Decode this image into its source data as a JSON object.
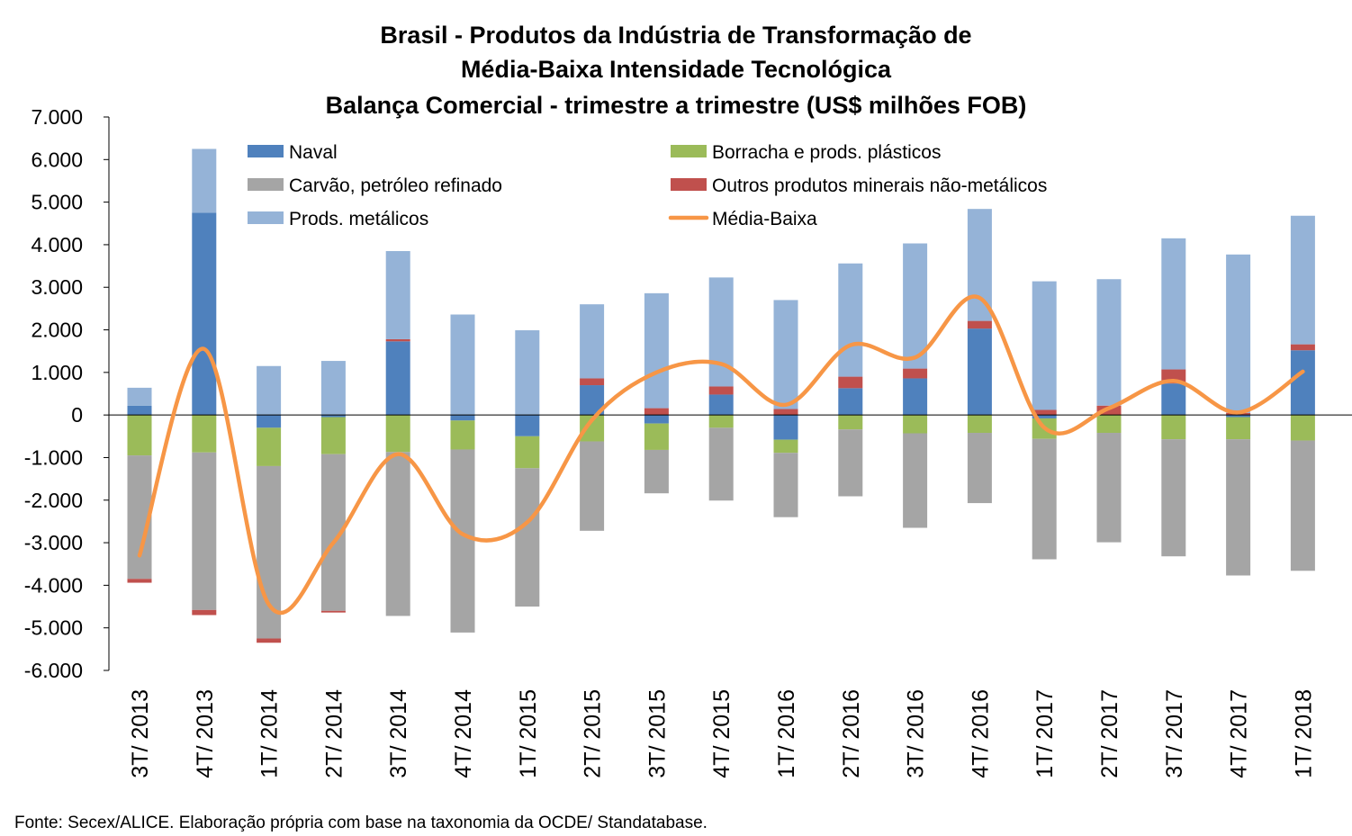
{
  "chart_data": {
    "type": "bar",
    "stacked": true,
    "title_lines": [
      "Brasil - Produtos da Indústria de Transformação de",
      "Média-Baixa Intensidade Tecnológica",
      "Balança Comercial - trimestre a trimestre (US$ milhões FOB)"
    ],
    "categories": [
      "3T/ 2013",
      "4T/ 2013",
      "1T/ 2014",
      "2T/ 2014",
      "3T/ 2014",
      "4T/ 2014",
      "1T/ 2015",
      "2T/ 2015",
      "3T/ 2015",
      "4T/ 2015",
      "1T/ 2016",
      "2T/ 2016",
      "3T/ 2016",
      "4T/ 2016",
      "1T/ 2017",
      "2T/ 2017",
      "3T/ 2017",
      "4T/ 2017",
      "1T/ 2018"
    ],
    "y_ticks": [
      "7.000",
      "6.000",
      "5.000",
      "4.000",
      "3.000",
      "2.000",
      "1.000",
      "0",
      "-1.000",
      "-2.000",
      "-3.000",
      "-4.000",
      "-5.000",
      "-6.000"
    ],
    "ylim": [
      -6000,
      7000
    ],
    "series": [
      {
        "name": "Naval",
        "color": "#4f81bd",
        "kind": "bar",
        "values": [
          220,
          4750,
          -300,
          -50,
          1730,
          -130,
          -500,
          700,
          -200,
          480,
          -580,
          630,
          860,
          2030,
          -80,
          0,
          740,
          -50,
          1520
        ]
      },
      {
        "name": "Borracha e prods. plásticos",
        "color": "#9bbb59",
        "kind": "bar",
        "values": [
          -950,
          -880,
          -900,
          -870,
          -870,
          -680,
          -750,
          -620,
          -620,
          -300,
          -310,
          -340,
          -430,
          -420,
          -480,
          -420,
          -570,
          -520,
          -600
        ]
      },
      {
        "name": "Carvão, petróleo refinado",
        "color": "#a5a5a5",
        "kind": "bar",
        "values": [
          -2900,
          -3700,
          -4050,
          -3680,
          -3850,
          -4300,
          -3250,
          -2100,
          -1020,
          -1710,
          -1510,
          -1570,
          -2220,
          -1650,
          -2830,
          -2570,
          -2750,
          -3200,
          -3060
        ]
      },
      {
        "name": "Outros produtos minerais não-metálicos",
        "color": "#c0504d",
        "kind": "bar",
        "values": [
          -90,
          -120,
          -100,
          -40,
          50,
          0,
          0,
          160,
          160,
          190,
          140,
          270,
          230,
          180,
          120,
          220,
          330,
          50,
          140
        ]
      },
      {
        "name": "Prods. metálicos",
        "color": "#95b3d7",
        "kind": "bar",
        "values": [
          420,
          1500,
          1150,
          1270,
          2070,
          2360,
          1990,
          1740,
          2700,
          2560,
          2560,
          2660,
          2940,
          2630,
          3020,
          2970,
          3080,
          3720,
          3020
        ]
      },
      {
        "name": "Média-Baixa",
        "color": "#f79646",
        "kind": "line",
        "values": [
          -3300,
          1550,
          -4450,
          -3000,
          -920,
          -2800,
          -2520,
          -120,
          1000,
          1200,
          240,
          1640,
          1350,
          2750,
          -300,
          160,
          800,
          60,
          1020
        ]
      }
    ],
    "legend": [
      {
        "label": "Naval",
        "color": "#4f81bd",
        "kind": "box"
      },
      {
        "label": "Borracha e prods. plásticos",
        "color": "#9bbb59",
        "kind": "box"
      },
      {
        "label": "Carvão, petróleo refinado",
        "color": "#a5a5a5",
        "kind": "box"
      },
      {
        "label": "Outros produtos minerais não-metálicos",
        "color": "#c0504d",
        "kind": "box"
      },
      {
        "label": "Prods. metálicos",
        "color": "#95b3d7",
        "kind": "box"
      },
      {
        "label": "Média-Baixa",
        "color": "#f79646",
        "kind": "line"
      }
    ],
    "legend_position": "top, inside plot",
    "grid": false
  },
  "source_note": "Fonte: Secex/ALICE. Elaboração própria com base na taxonomia da OCDE/ Standatabase."
}
